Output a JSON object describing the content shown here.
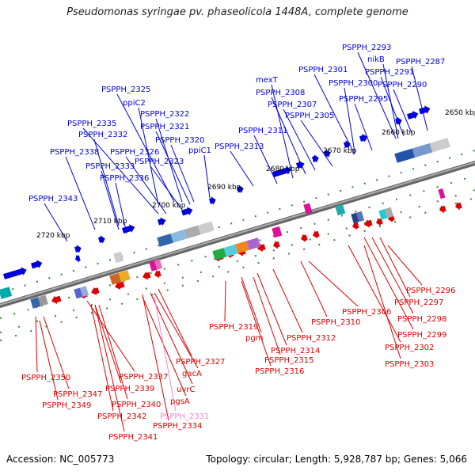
{
  "title": "Pseudomonas syringae pv. phaseolicola 1448A, complete genome",
  "footer": {
    "accession": "Accession: NC_005773",
    "summary": "Topology: circular; Length: 5,928,787 bp; Genes: 5,066"
  },
  "colors": {
    "forward": "#0000dd",
    "reverse": "#dd0000",
    "pseudo": "#ee88cc",
    "backbone": "#777777",
    "tick": "#338833"
  },
  "scale_labels": [
    "2650 kbp",
    "2660 kbp",
    "2670 kbp",
    "2680 kbp",
    "2690 kbp",
    "2700 kbp",
    "2710 kbp",
    "2720 kbp"
  ],
  "forward_labels": [
    "PSPPH_2293",
    "nikB",
    "PSPPH_2287",
    "PSPPH_2291",
    "PSPPH_2301",
    "PSPPH_2290",
    "mexT",
    "PSPPH_2300",
    "PSPPH_2325",
    "PSPPH_2308",
    "PSPPH_2295",
    "ppiC2",
    "PSPPH_2307",
    "PSPPH_2322",
    "PSPPH_2305",
    "PSPPH_2335",
    "PSPPH_2321",
    "PSPPH_2311",
    "PSPPH_2332",
    "PSPPH_2320",
    "ppiC1",
    "PSPPH_2313",
    "PSPPH_2338",
    "PSPPH_2326",
    "PSPPH_2323",
    "PSPPH_2333",
    "PSPPH_2336",
    "PSPPH_2343"
  ],
  "reverse_labels": [
    "PSPPH_2296",
    "PSPPH_2306",
    "PSPPH_2297",
    "PSPPH_2298",
    "PSPPH_2310",
    "PSPPH_2299",
    "PSPPH_2319",
    "PSPPH_2312",
    "pgm",
    "PSPPH_2314",
    "PSPPH_2302",
    "PSPPH_2327",
    "PSPPH_2315",
    "PSPPH_2303",
    "PSPPH_2316",
    "gacA",
    "PSPPH_2350",
    "PSPPH_2337",
    "PSPPH_2339",
    "PSPPH_2347",
    "uvrC",
    "PSPPH_2349",
    "PSPPH_2340",
    "pgsA",
    "PSPPH_2342",
    "PSPPH_2331",
    "PSPPH_2334",
    "PSPPH_2341"
  ],
  "pseudo_labels": [
    "PSPPH_2331"
  ]
}
